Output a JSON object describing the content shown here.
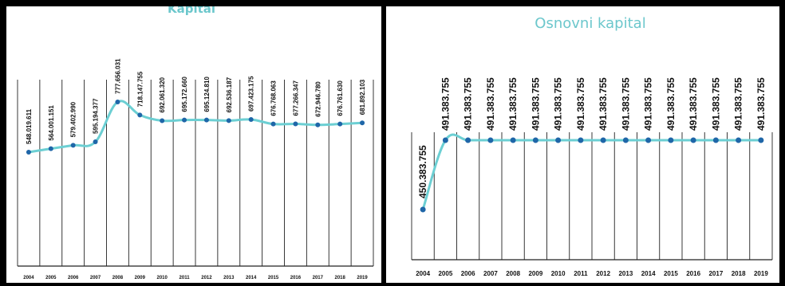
{
  "chart_data": [
    {
      "type": "line",
      "title": "Kapital",
      "xlabel": "",
      "ylabel": "",
      "x": [
        "2004",
        "2005",
        "2006",
        "2007",
        "2008",
        "2009",
        "2010",
        "2011",
        "2012",
        "2013",
        "2014",
        "2015",
        "2016",
        "2017",
        "2018",
        "2019"
      ],
      "values": [
        548.019611,
        564.001151,
        579.40299,
        595.194377,
        777.656031,
        718.147755,
        692.06132,
        695.17266,
        695.12481,
        692.536187,
        697.423175,
        676.768063,
        677.266347,
        672.94678,
        676.76163,
        681.892103
      ],
      "value_labels": [
        "548.019.611",
        "564.001.151",
        "579.402.990",
        "595.194.377",
        "777.656.031",
        "718.147.755",
        "692.061.320",
        "695.172.660",
        "695.124.810",
        "692.536.187",
        "697.423.175",
        "676.768.063",
        "677.266.347",
        "672.946.780",
        "676.761.630",
        "681.892.103"
      ],
      "grid": true,
      "colors": {
        "line": "#6ccfd3",
        "marker": "#1f66a8",
        "title": "#6cc7cc"
      }
    },
    {
      "type": "line",
      "title": "Osnovni kapital",
      "xlabel": "",
      "ylabel": "",
      "x": [
        "2004",
        "2005",
        "2006",
        "2007",
        "2008",
        "2009",
        "2010",
        "2011",
        "2012",
        "2013",
        "2014",
        "2015",
        "2016",
        "2017",
        "2018",
        "2019"
      ],
      "values": [
        450.383755,
        491.383755,
        491.383755,
        491.383755,
        491.383755,
        491.383755,
        491.383755,
        491.383755,
        491.383755,
        491.383755,
        491.383755,
        491.383755,
        491.383755,
        491.383755,
        491.383755,
        491.383755
      ],
      "value_labels": [
        "450.383.755",
        "491.383.755",
        "491.383.755",
        "491.383.755",
        "491.383.755",
        "491.383.755",
        "491.383.755",
        "491.383.755",
        "491.383.755",
        "491.383.755",
        "491.383.755",
        "491.383.755",
        "491.383.755",
        "491.383.755",
        "491.383.755",
        "491.383.755"
      ],
      "grid": true,
      "colors": {
        "line": "#6ccfd3",
        "marker": "#1f66a8",
        "title": "#6cc7cc"
      }
    }
  ]
}
